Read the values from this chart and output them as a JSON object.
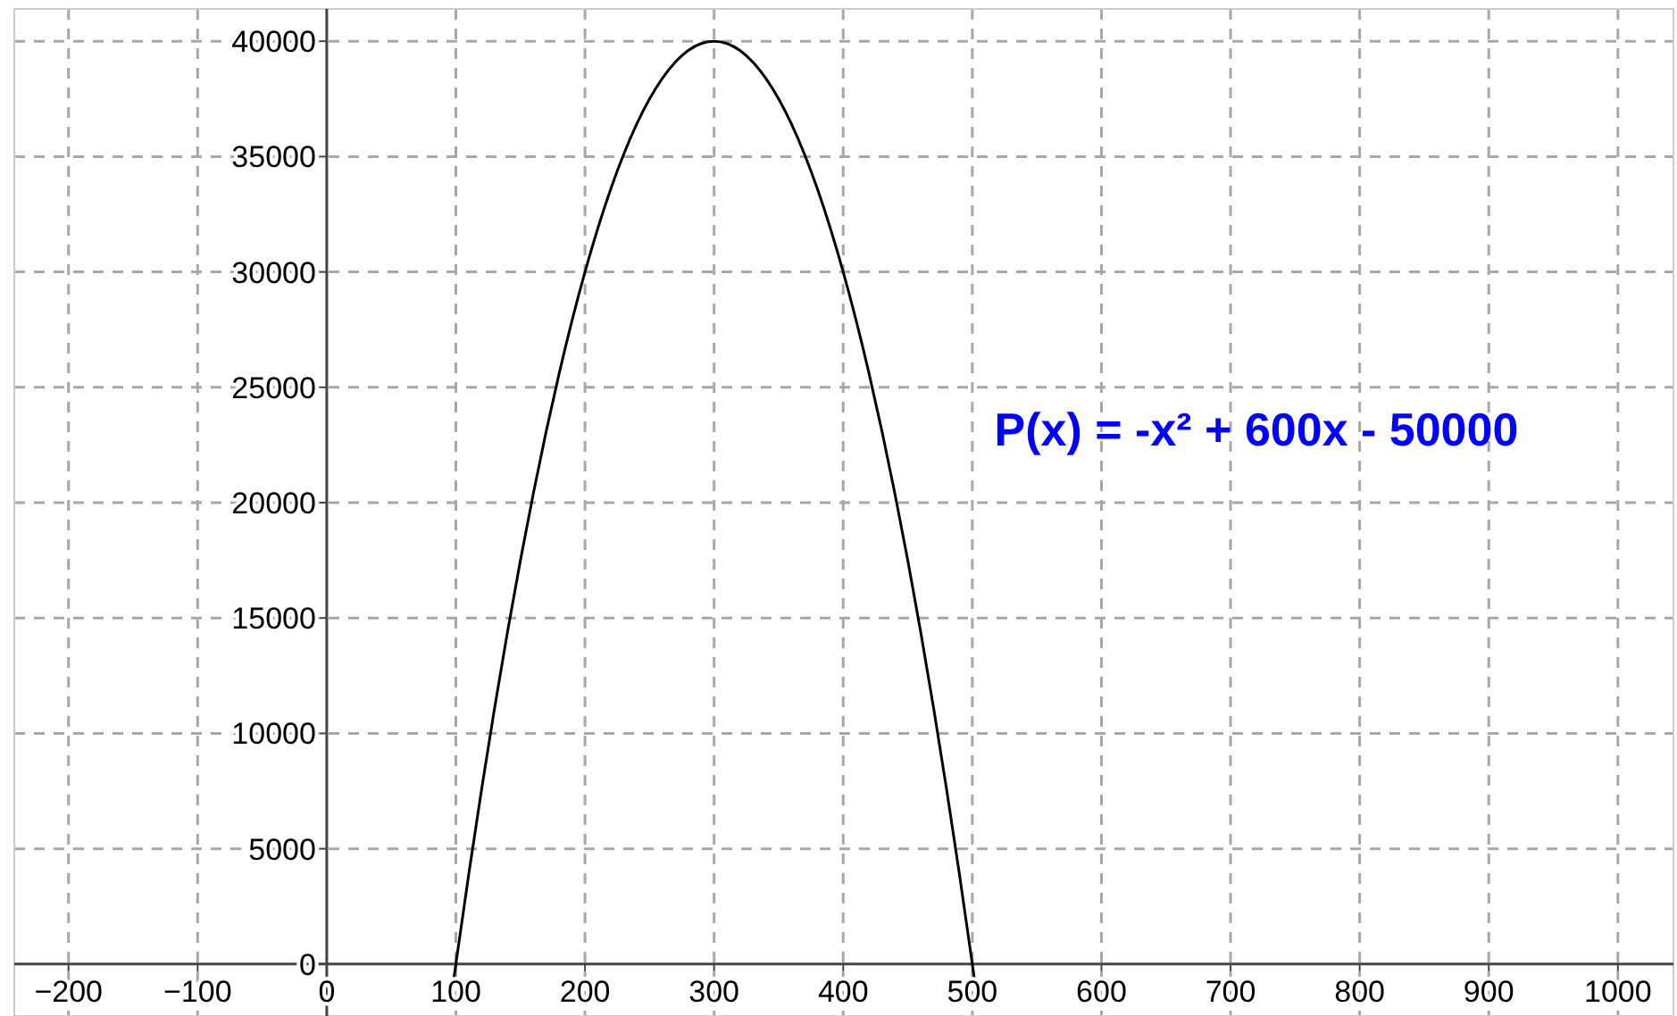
{
  "chart_data": {
    "type": "line",
    "x": [
      96,
      100,
      110,
      120,
      130,
      140,
      150,
      160,
      170,
      180,
      190,
      200,
      210,
      220,
      230,
      240,
      250,
      260,
      270,
      280,
      290,
      300,
      310,
      320,
      330,
      340,
      350,
      360,
      370,
      380,
      390,
      400,
      410,
      420,
      430,
      440,
      450,
      460,
      470,
      480,
      490,
      500,
      504
    ],
    "series": [
      {
        "color": "#000000",
        "values": [
          -1600,
          0,
          3900,
          7600,
          11100,
          14400,
          17500,
          20400,
          23100,
          25600,
          27900,
          30000,
          31900,
          33600,
          35100,
          36400,
          37500,
          38400,
          39100,
          39600,
          39900,
          40000,
          39900,
          39600,
          39100,
          38400,
          37500,
          36400,
          35100,
          33600,
          31900,
          30000,
          27900,
          25600,
          23100,
          20400,
          17500,
          14400,
          11100,
          7600,
          3900,
          0,
          -1600
        ]
      }
    ],
    "xlim": [
      -242,
      1043
    ],
    "ylim": [
      -2250,
      41400
    ],
    "xticks": [
      -200,
      -100,
      0,
      100,
      200,
      300,
      400,
      500,
      600,
      700,
      800,
      900,
      1000
    ],
    "yticks": [
      0,
      5000,
      10000,
      15000,
      20000,
      25000,
      30000,
      35000,
      40000
    ],
    "grid": true,
    "marker": "none",
    "line_style": "solid",
    "annotations": [
      "P(x) = -x² + 600x - 50000"
    ]
  }
}
